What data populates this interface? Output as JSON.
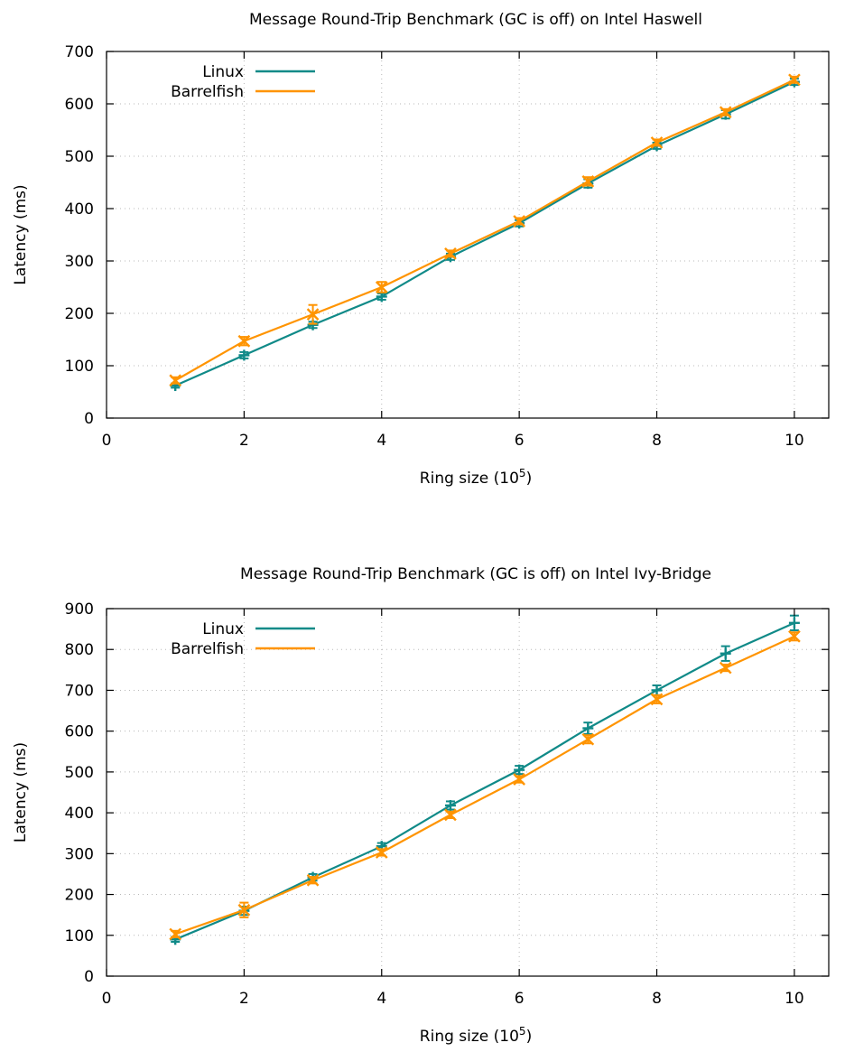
{
  "chart_data": [
    {
      "type": "line",
      "title": "Message Round-Trip Benchmark (GC is off) on Intel Haswell",
      "xlabel_base": "Ring size (10",
      "xlabel_sup": "5",
      "xlabel_close": ")",
      "ylabel": "Latency (ms)",
      "xlim": [
        0,
        10.5
      ],
      "ylim": [
        0,
        700
      ],
      "xticks": [
        0,
        2,
        4,
        6,
        8,
        10
      ],
      "yticks": [
        0,
        100,
        200,
        300,
        400,
        500,
        600,
        700
      ],
      "grid": true,
      "legend_position": "top-left",
      "error_bars": true,
      "series": [
        {
          "name": "Linux",
          "color": "#108a88",
          "marker": "plus",
          "x": [
            1,
            2,
            3,
            4,
            5,
            6,
            7,
            8,
            9,
            10
          ],
          "values": [
            62,
            120,
            178,
            232,
            308,
            372,
            448,
            520,
            580,
            642
          ],
          "errors": [
            4,
            6,
            6,
            6,
            6,
            6,
            8,
            6,
            8,
            6
          ]
        },
        {
          "name": "Barrelfish",
          "color": "#ff9400",
          "marker": "x",
          "x": [
            1,
            2,
            3,
            4,
            5,
            6,
            7,
            8,
            9,
            10
          ],
          "values": [
            72,
            147,
            198,
            250,
            314,
            376,
            452,
            526,
            584,
            646
          ],
          "errors": [
            6,
            8,
            18,
            10,
            6,
            6,
            8,
            6,
            6,
            6
          ]
        }
      ]
    },
    {
      "type": "line",
      "title": "Message Round-Trip Benchmark (GC is off) on Intel Ivy-Bridge",
      "xlabel_base": "Ring size (10",
      "xlabel_sup": "5",
      "xlabel_close": ")",
      "ylabel": "Latency (ms)",
      "xlim": [
        0,
        10.5
      ],
      "ylim": [
        0,
        900
      ],
      "xticks": [
        0,
        2,
        4,
        6,
        8,
        10
      ],
      "yticks": [
        0,
        100,
        200,
        300,
        400,
        500,
        600,
        700,
        800,
        900
      ],
      "grid": true,
      "legend_position": "top-left",
      "error_bars": true,
      "series": [
        {
          "name": "Linux",
          "color": "#108a88",
          "marker": "plus",
          "x": [
            1,
            2,
            3,
            4,
            5,
            6,
            7,
            8,
            9,
            10
          ],
          "values": [
            90,
            160,
            242,
            318,
            418,
            505,
            607,
            700,
            790,
            865
          ],
          "errors": [
            6,
            10,
            8,
            8,
            10,
            10,
            14,
            12,
            18,
            18
          ]
        },
        {
          "name": "Barrelfish",
          "color": "#ff9400",
          "marker": "x",
          "x": [
            1,
            2,
            3,
            4,
            5,
            6,
            7,
            8,
            9,
            10
          ],
          "values": [
            103,
            162,
            235,
            303,
            395,
            482,
            580,
            678,
            755,
            832
          ],
          "errors": [
            8,
            18,
            8,
            8,
            8,
            8,
            10,
            10,
            8,
            10
          ]
        }
      ]
    }
  ]
}
